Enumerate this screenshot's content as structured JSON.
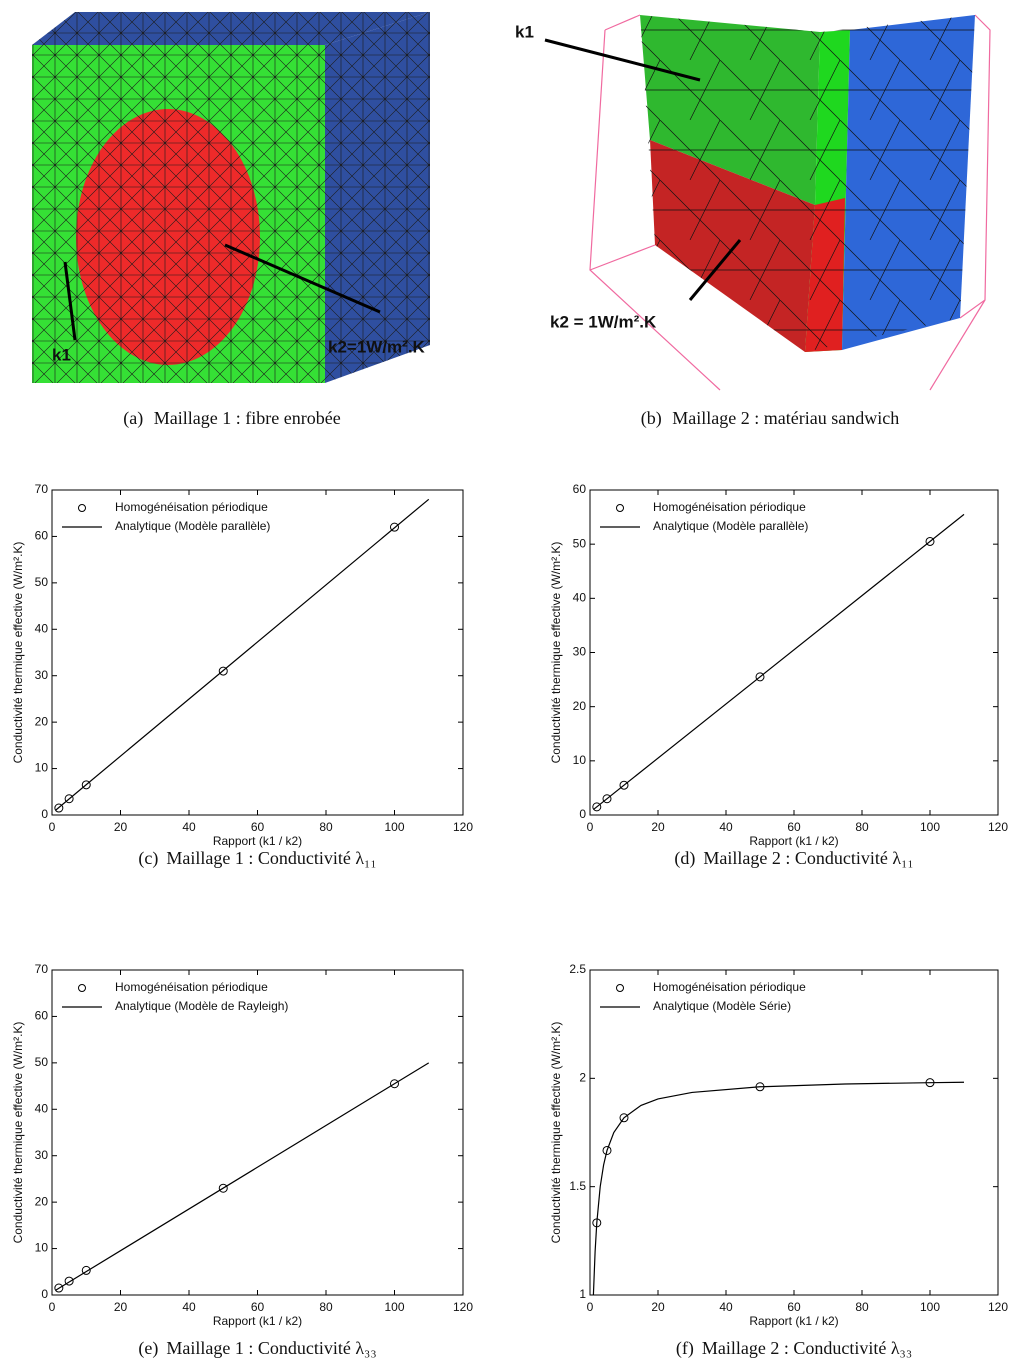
{
  "figures": [
    {
      "label": "(a)",
      "caption": "Maillage 1 : fibre enrobée",
      "annotations": [
        "k1",
        "k2=1W/m².K"
      ]
    },
    {
      "label": "(b)",
      "caption": "Maillage 2 : matériau sandwich",
      "annotations": [
        "k1",
        "k2 = 1W/m².K"
      ]
    }
  ],
  "chart_data": [
    {
      "type": "line",
      "label": "(c)",
      "caption": "Maillage 1 : Conductivité λ₁₁",
      "xlabel": "Rapport (k1 / k2)",
      "ylabel": "Conductivité thermique effective (W/m².K)",
      "xlim": [
        0,
        120
      ],
      "xticks": [
        0,
        20,
        40,
        60,
        80,
        100,
        120
      ],
      "ylim": [
        0,
        70
      ],
      "yticks": [
        0,
        10,
        20,
        30,
        40,
        50,
        60,
        70
      ],
      "legend": "upper left",
      "series": [
        {
          "name": "Homogénéisation périodique",
          "color": "#000000",
          "marker": "circle",
          "x": [
            2,
            5,
            10,
            50,
            100
          ],
          "values": [
            1.5,
            3.5,
            6.5,
            31,
            62
          ]
        },
        {
          "name": "Analytique (Modèle parallèle)",
          "color": "#000000",
          "x": [
            1,
            110
          ],
          "values": [
            1,
            68
          ]
        }
      ]
    },
    {
      "type": "line",
      "label": "(d)",
      "caption": "Maillage 2 : Conductivité λ₁₁",
      "xlabel": "Rapport (k1 / k2)",
      "ylabel": "Conductivité thermique effective (W/m².K)",
      "xlim": [
        0,
        120
      ],
      "xticks": [
        0,
        20,
        40,
        60,
        80,
        100,
        120
      ],
      "ylim": [
        0,
        60
      ],
      "yticks": [
        0,
        10,
        20,
        30,
        40,
        50,
        60
      ],
      "legend": "upper left",
      "series": [
        {
          "name": "Homogénéisation périodique",
          "color": "#000000",
          "marker": "circle",
          "x": [
            2,
            5,
            10,
            50,
            100
          ],
          "values": [
            1.5,
            3,
            5.5,
            25.5,
            50.5
          ]
        },
        {
          "name": "Analytique (Modèle parallèle)",
          "color": "#000000",
          "x": [
            1,
            110
          ],
          "values": [
            1,
            55.5
          ]
        }
      ]
    },
    {
      "type": "line",
      "label": "(e)",
      "caption": "Maillage 1 : Conductivité λ₃₃",
      "xlabel": "Rapport (k1 / k2)",
      "ylabel": "Conductivité thermique effective (W/m².K)",
      "xlim": [
        0,
        120
      ],
      "xticks": [
        0,
        20,
        40,
        60,
        80,
        100,
        120
      ],
      "ylim": [
        0,
        70
      ],
      "yticks": [
        0,
        10,
        20,
        30,
        40,
        50,
        60,
        70
      ],
      "legend": "upper left",
      "series": [
        {
          "name": "Homogénéisation périodique",
          "color": "#000000",
          "marker": "circle",
          "x": [
            2,
            5,
            10,
            50,
            100
          ],
          "values": [
            1.5,
            3,
            5.3,
            23,
            45.5
          ]
        },
        {
          "name": "Analytique (Modèle de Rayleigh)",
          "color": "#000000",
          "x": [
            1,
            110
          ],
          "values": [
            1,
            50
          ]
        }
      ]
    },
    {
      "type": "line",
      "label": "(f)",
      "caption": "Maillage 2 : Conductivité λ₃₃",
      "xlabel": "Rapport (k1 / k2)",
      "ylabel": "Conductivité thermique effective (W/m².K)",
      "xlim": [
        0,
        120
      ],
      "xticks": [
        0,
        20,
        40,
        60,
        80,
        100,
        120
      ],
      "ylim": [
        1,
        2.5
      ],
      "yticks": [
        1,
        1.5,
        2,
        2.5
      ],
      "legend": "upper left",
      "series": [
        {
          "name": "Homogénéisation périodique",
          "color": "#000000",
          "marker": "circle",
          "x": [
            2,
            5,
            10,
            50,
            100
          ],
          "values": [
            1.333,
            1.667,
            1.818,
            1.961,
            1.98
          ]
        },
        {
          "name": "Analytique (Modèle Série)",
          "color": "#000000",
          "x": [
            1,
            1.5,
            2,
            3,
            4,
            5,
            7,
            10,
            15,
            20,
            30,
            50,
            75,
            100,
            110
          ],
          "values": [
            1,
            1.2,
            1.333,
            1.5,
            1.6,
            1.667,
            1.75,
            1.818,
            1.875,
            1.905,
            1.935,
            1.961,
            1.974,
            1.98,
            1.982
          ]
        }
      ]
    }
  ]
}
